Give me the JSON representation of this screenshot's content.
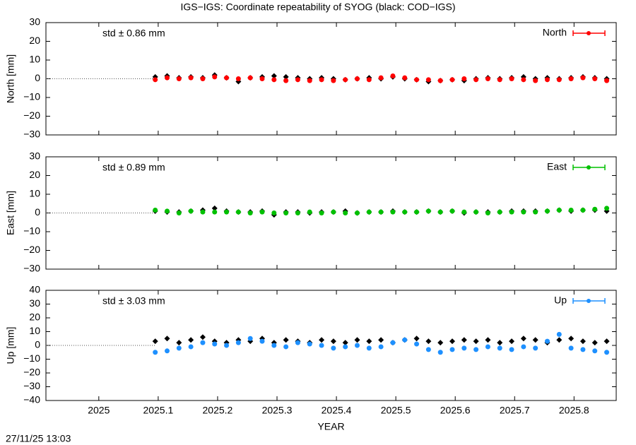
{
  "footer": "27/11/25 13:03",
  "chart_data": [
    {
      "type": "scatter",
      "title": "IGS−IGS: Coordinate repeatability of SYOG (black: COD−IGS)",
      "ylabel": "North [mm]",
      "annotation": "std ± 0.86 mm",
      "x": [
        2025.095,
        2025.115,
        2025.135,
        2025.155,
        2025.175,
        2025.195,
        2025.215,
        2025.235,
        2025.255,
        2025.275,
        2025.295,
        2025.315,
        2025.335,
        2025.355,
        2025.375,
        2025.395,
        2025.415,
        2025.435,
        2025.455,
        2025.475,
        2025.495,
        2025.515,
        2025.535,
        2025.555,
        2025.575,
        2025.595,
        2025.615,
        2025.635,
        2025.655,
        2025.675,
        2025.695,
        2025.715,
        2025.735,
        2025.755,
        2025.775,
        2025.795,
        2025.815,
        2025.835,
        2025.855
      ],
      "xlim": [
        2024.911,
        2025.871
      ],
      "ylim": [
        -30,
        30
      ],
      "yticks": [
        {
          "value": -30,
          "label": "−30"
        },
        {
          "value": -20,
          "label": "−20"
        },
        {
          "value": -10,
          "label": "−10"
        },
        0,
        10,
        20,
        30
      ],
      "series": [
        {
          "color": "#000000",
          "values": [
            1,
            1.5,
            0.5,
            1,
            0.5,
            2,
            0.5,
            -1.5,
            0.5,
            1,
            1.5,
            1,
            0.5,
            0,
            0.5,
            0,
            -0.5,
            0,
            0.5,
            0,
            1,
            0,
            -0.5,
            -1.5,
            -1,
            -0.5,
            -1,
            0,
            0.5,
            0,
            0.5,
            1,
            0,
            0.5,
            0,
            0.5,
            1,
            0.5,
            0
          ]
        },
        {
          "name": "North",
          "color": "#ff0000",
          "values": [
            -0.5,
            0.5,
            0,
            0.5,
            0,
            1,
            0.5,
            0,
            0.5,
            0,
            -0.5,
            -1,
            -0.5,
            -1,
            -0.5,
            -1,
            -0.5,
            0,
            -0.5,
            0.5,
            1.5,
            0.5,
            -0.5,
            -0.5,
            -1,
            -0.5,
            0,
            -0.5,
            0,
            -0.5,
            0,
            -0.5,
            -1,
            -0.5,
            -0.5,
            0,
            0.5,
            0,
            -1
          ]
        }
      ]
    },
    {
      "type": "scatter",
      "ylabel": "East [mm]",
      "annotation": "std ± 0.89 mm",
      "x": [
        2025.095,
        2025.115,
        2025.135,
        2025.155,
        2025.175,
        2025.195,
        2025.215,
        2025.235,
        2025.255,
        2025.275,
        2025.295,
        2025.315,
        2025.335,
        2025.355,
        2025.375,
        2025.395,
        2025.415,
        2025.435,
        2025.455,
        2025.475,
        2025.495,
        2025.515,
        2025.535,
        2025.555,
        2025.575,
        2025.595,
        2025.615,
        2025.635,
        2025.655,
        2025.675,
        2025.695,
        2025.715,
        2025.735,
        2025.755,
        2025.775,
        2025.795,
        2025.815,
        2025.835,
        2025.855
      ],
      "xlim": [
        2024.911,
        2025.871
      ],
      "ylim": [
        -30,
        30
      ],
      "yticks": [
        {
          "value": -30,
          "label": "−30"
        },
        {
          "value": -20,
          "label": "−20"
        },
        {
          "value": -10,
          "label": "−10"
        },
        0,
        10,
        20,
        30
      ],
      "series": [
        {
          "color": "#000000",
          "values": [
            1,
            0.5,
            0.5,
            1,
            1.5,
            2.5,
            1,
            0.5,
            0.5,
            1,
            -1,
            0.5,
            0.5,
            0,
            0.5,
            0.5,
            1,
            0,
            0.5,
            0.5,
            1,
            0.5,
            0.5,
            1,
            0.5,
            1,
            0,
            0.5,
            0.5,
            0.5,
            1,
            1,
            1,
            1,
            1.5,
            1,
            1.5,
            1.5,
            1
          ]
        },
        {
          "name": "East",
          "color": "#00c000",
          "values": [
            1.5,
            1,
            0,
            1,
            0.5,
            0.5,
            0.5,
            0.5,
            0,
            0.5,
            0,
            0,
            0,
            0.5,
            0,
            0.5,
            0,
            0,
            0.5,
            0.5,
            0.5,
            0.5,
            0.5,
            1,
            0.5,
            1,
            0.5,
            0.5,
            0,
            0.5,
            0.5,
            0.5,
            0.5,
            1,
            1.5,
            1.5,
            1.5,
            2,
            2.5
          ]
        }
      ]
    },
    {
      "type": "scatter",
      "ylabel": "Up [mm]",
      "xlabel": "YEAR",
      "annotation": "std ± 3.03 mm",
      "x": [
        2025.095,
        2025.115,
        2025.135,
        2025.155,
        2025.175,
        2025.195,
        2025.215,
        2025.235,
        2025.255,
        2025.275,
        2025.295,
        2025.315,
        2025.335,
        2025.355,
        2025.375,
        2025.395,
        2025.415,
        2025.435,
        2025.455,
        2025.475,
        2025.495,
        2025.515,
        2025.535,
        2025.555,
        2025.575,
        2025.595,
        2025.615,
        2025.635,
        2025.655,
        2025.675,
        2025.695,
        2025.715,
        2025.735,
        2025.755,
        2025.775,
        2025.795,
        2025.815,
        2025.835,
        2025.855
      ],
      "xlim": [
        2024.911,
        2025.871
      ],
      "ylim": [
        -40,
        40
      ],
      "xticks": [
        2025,
        2025.1,
        2025.2,
        2025.3,
        2025.4,
        2025.5,
        2025.6,
        2025.7,
        2025.8
      ],
      "yticks": [
        {
          "value": -40,
          "label": "−40"
        },
        {
          "value": -30,
          "label": "−30"
        },
        {
          "value": -20,
          "label": "−20"
        },
        {
          "value": -10,
          "label": "−10"
        },
        0,
        10,
        20,
        30,
        40
      ],
      "series": [
        {
          "color": "#000000",
          "values": [
            3,
            5,
            2,
            4,
            6,
            3,
            2,
            4,
            3,
            5,
            2,
            4,
            3,
            2,
            4,
            3,
            2,
            4,
            3,
            4,
            2,
            4,
            5,
            3,
            2,
            3,
            4,
            3,
            4,
            2,
            3,
            5,
            4,
            2,
            4,
            5,
            3,
            2,
            3
          ]
        },
        {
          "name": "Up",
          "color": "#1e90ff",
          "values": [
            -5,
            -4,
            -2,
            -1,
            2,
            1,
            0,
            2,
            5,
            3,
            0,
            -1,
            2,
            1,
            0,
            -2,
            -1,
            0,
            -2,
            -1,
            2,
            4,
            1,
            -3,
            -5,
            -3,
            -2,
            -3,
            -1,
            -2,
            -3,
            -1,
            -2,
            3,
            8,
            -2,
            -3,
            -4,
            -5
          ]
        }
      ]
    }
  ]
}
